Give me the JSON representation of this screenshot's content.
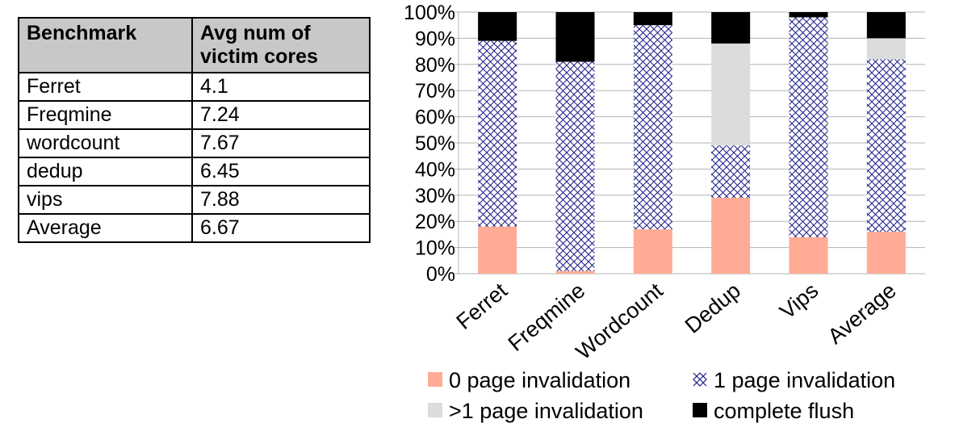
{
  "table": {
    "headers": [
      "Benchmark",
      "Avg num of",
      "victim cores"
    ],
    "rows": [
      [
        "Ferret",
        "4.1"
      ],
      [
        "Freqmine",
        "7.24"
      ],
      [
        "wordcount",
        "7.67"
      ],
      [
        "dedup",
        "6.45"
      ],
      [
        "vips",
        "7.88"
      ],
      [
        "Average",
        "6.67"
      ]
    ]
  },
  "chart_data": {
    "type": "bar",
    "stacked": true,
    "percent_stacked": true,
    "categories": [
      "Ferret",
      "Freqmine",
      "Wordcount",
      "Dedup",
      "Vips",
      "Average"
    ],
    "series": [
      {
        "name": "0 page invalidation",
        "color": "#ffab96",
        "pattern": "solid",
        "values": [
          18,
          1,
          17,
          29,
          14,
          16
        ]
      },
      {
        "name": "1 page invalidation",
        "color": "#1a1a8c",
        "pattern": "crosshatch",
        "values": [
          71,
          80,
          78,
          20,
          84,
          66
        ]
      },
      {
        "name": ">1 page invalidation",
        "color": "#dcdcdc",
        "pattern": "solid",
        "values": [
          0,
          0,
          0,
          39,
          0,
          8
        ]
      },
      {
        "name": "complete flush",
        "color": "#000000",
        "pattern": "solid",
        "values": [
          11,
          19,
          5,
          12,
          2,
          10
        ]
      }
    ],
    "y_ticks": [
      "0%",
      "10%",
      "20%",
      "30%",
      "40%",
      "50%",
      "60%",
      "70%",
      "80%",
      "90%",
      "100%"
    ],
    "ylim": [
      0,
      100
    ],
    "grid": true,
    "legend_position": "bottom",
    "xlabel": "",
    "ylabel": ""
  }
}
